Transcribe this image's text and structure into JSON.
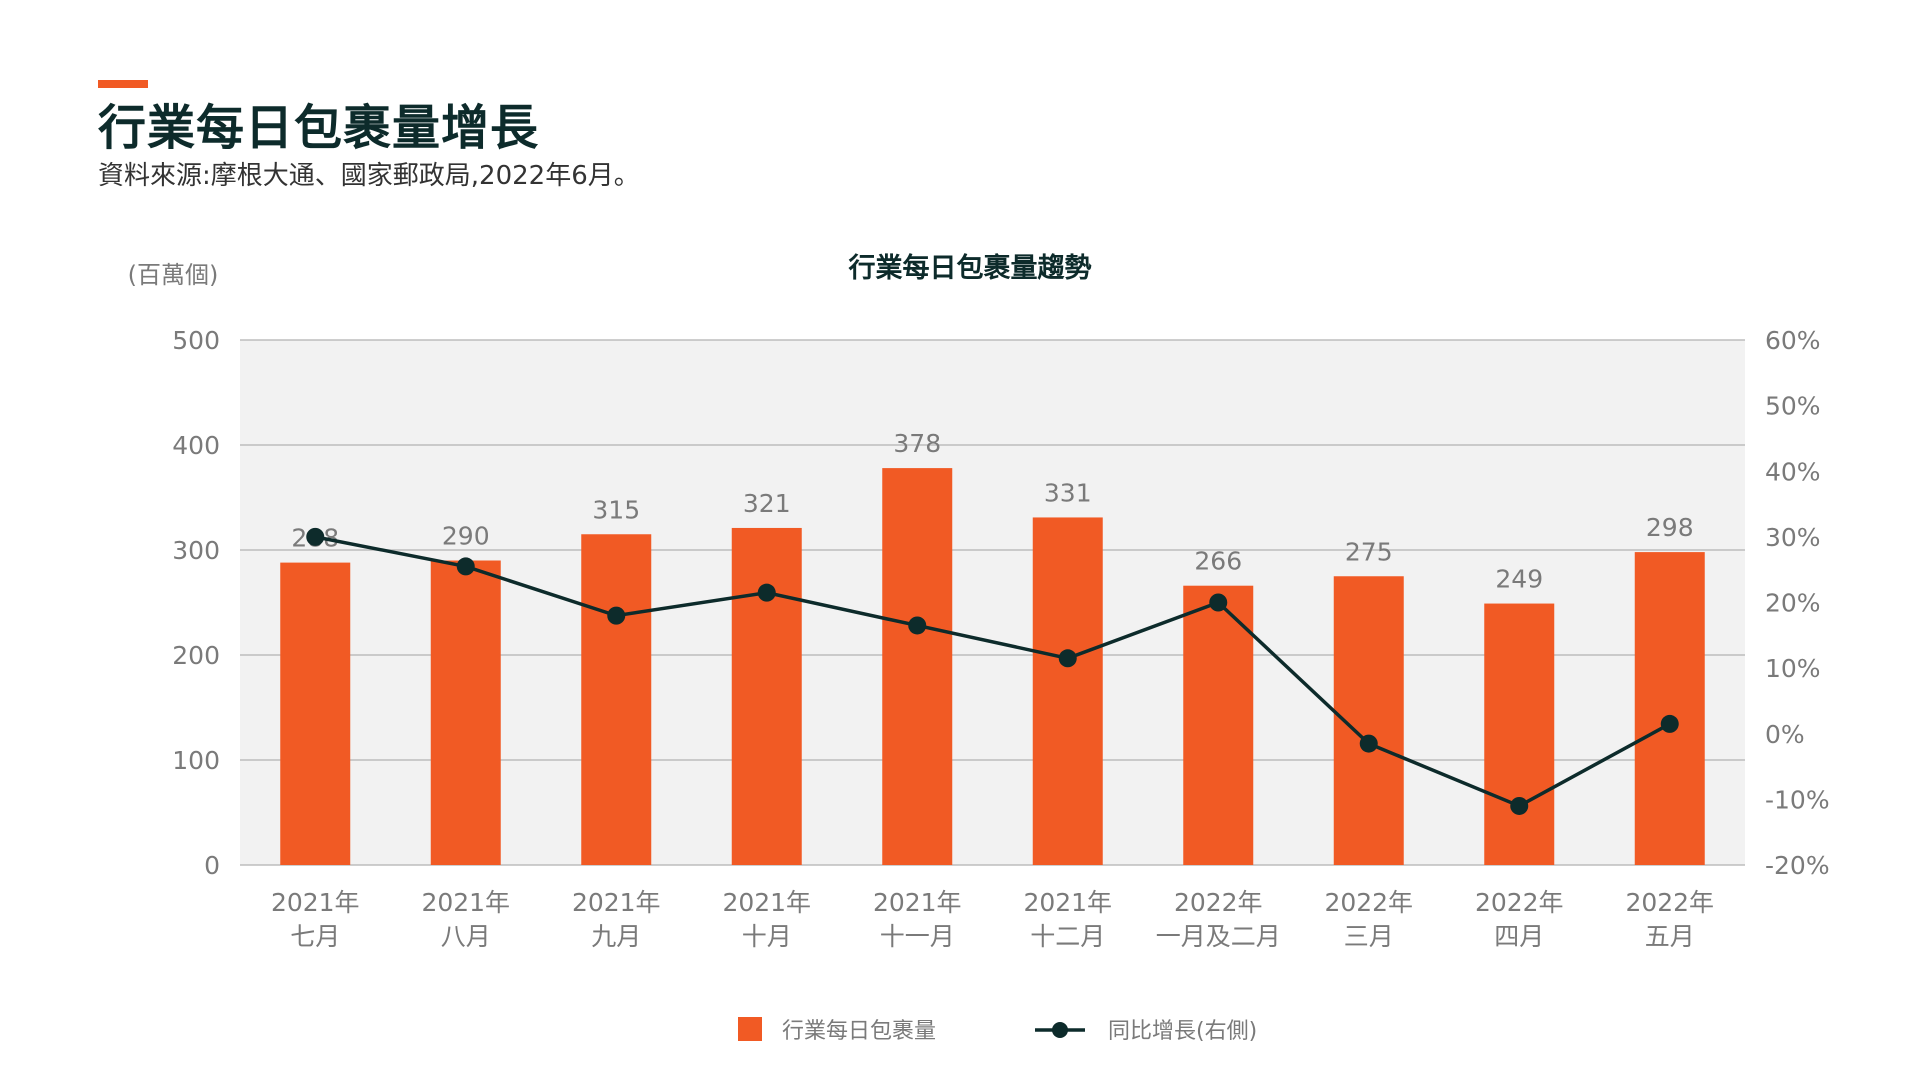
{
  "page": {
    "title": "行業每日包裹量增長",
    "subtitle": "資料來源:摩根大通、國家郵政局,2022年6月。"
  },
  "colors": {
    "accent": "#f15a24",
    "bar": "#f15a24",
    "line": "#0d2b2b",
    "plot_background": "#f2f2f2",
    "grid": "#bdbdbd",
    "axis_text": "#7a7a7a",
    "title_text": "#0d2b2b"
  },
  "chart_data": {
    "type": "bar",
    "title": "行業每日包裹量趨勢",
    "y_unit_label": "(百萬個)",
    "categories": [
      [
        "2021年",
        "七月"
      ],
      [
        "2021年",
        "八月"
      ],
      [
        "2021年",
        "九月"
      ],
      [
        "2021年",
        "十月"
      ],
      [
        "2021年",
        "十一月"
      ],
      [
        "2021年",
        "十二月"
      ],
      [
        "2022年",
        "一月及二月"
      ],
      [
        "2022年",
        "三月"
      ],
      [
        "2022年",
        "四月"
      ],
      [
        "2022年",
        "五月"
      ]
    ],
    "series": [
      {
        "name": "行業每日包裹量",
        "type": "bar",
        "axis": "left",
        "values": [
          288,
          290,
          315,
          321,
          378,
          331,
          266,
          275,
          249,
          298
        ]
      },
      {
        "name": "同比增長(右側)",
        "type": "line",
        "axis": "right",
        "values": [
          30,
          25.5,
          18,
          21.5,
          16.5,
          11.5,
          20,
          -1.5,
          -11,
          1.5
        ]
      }
    ],
    "y_left": {
      "min": 0,
      "max": 500,
      "ticks": [
        0,
        100,
        200,
        300,
        400,
        500
      ],
      "tick_labels": [
        "0",
        "100",
        "200",
        "300",
        "400",
        "500"
      ]
    },
    "y_right": {
      "min": -20,
      "max": 60,
      "ticks": [
        -20,
        -10,
        0,
        10,
        20,
        30,
        40,
        50,
        60
      ],
      "tick_labels": [
        "-20%",
        "-10%",
        "0%",
        "10%",
        "20%",
        "30%",
        "40%",
        "50%",
        "60%"
      ]
    },
    "grid": true,
    "legend": "bottom-center"
  }
}
